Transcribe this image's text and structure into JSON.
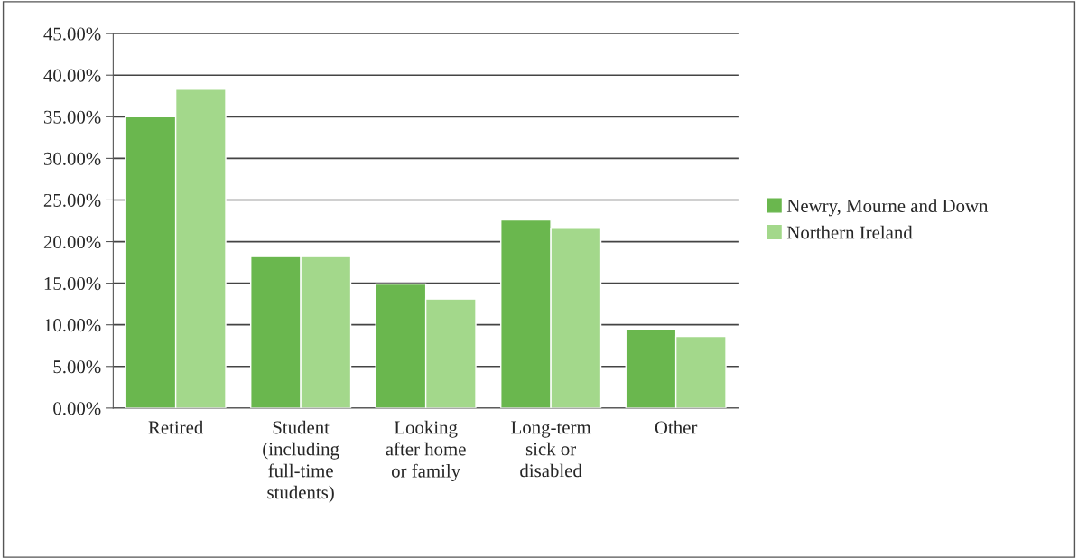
{
  "chart_data": {
    "type": "bar",
    "categories": [
      "Retired",
      "Student\n(including\nfull-time\nstudents)",
      "Looking\nafter home\nor family",
      "Long-term\nsick or\ndisabled",
      "Other"
    ],
    "series": [
      {
        "name": "Newry, Mourne and Down",
        "color": "#6ab74e",
        "values": [
          35.0,
          18.2,
          14.9,
          22.6,
          9.5
        ]
      },
      {
        "name": "Northern Ireland",
        "color": "#a3d88b",
        "values": [
          38.3,
          18.2,
          13.1,
          21.6,
          8.6
        ]
      }
    ],
    "ylim": [
      0,
      45
    ],
    "yticks": [
      {
        "value": 0,
        "label": "0.00%"
      },
      {
        "value": 5,
        "label": "5.00%"
      },
      {
        "value": 10,
        "label": "10.00%"
      },
      {
        "value": 15,
        "label": "15.00%"
      },
      {
        "value": 20,
        "label": "20.00%"
      },
      {
        "value": 25,
        "label": "25.00%"
      },
      {
        "value": 30,
        "label": "30.00%"
      },
      {
        "value": 35,
        "label": "35.00%"
      },
      {
        "value": 40,
        "label": "40.00%"
      },
      {
        "value": 45,
        "label": "45.00%"
      }
    ],
    "grid": "y",
    "legend": "right"
  }
}
